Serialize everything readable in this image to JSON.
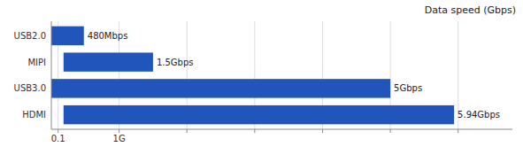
{
  "chart_data": {
    "type": "bar",
    "orientation": "horizontal",
    "title": "Data speed (Gbps)",
    "categories": [
      "USB2.0",
      "MIPI",
      "USB3.0",
      "HDMI"
    ],
    "starts": [
      0.0,
      0.18,
      0.0,
      0.18
    ],
    "values": [
      0.48,
      1.5,
      5.0,
      5.94
    ],
    "value_labels": [
      "480Mbps",
      "1.5Gbps",
      "5Gbps",
      "5.94Gbps"
    ],
    "data_labels": true,
    "color": "#2255bb",
    "xlim": [
      0.0,
      6.8
    ],
    "xticks": [
      0.1,
      {
        "value": 1,
        "label": "1G"
      },
      {
        "value": 2,
        "label": null
      },
      {
        "value": 3,
        "label": null
      },
      {
        "value": 4,
        "label": null
      },
      {
        "value": 5,
        "label": null
      },
      {
        "value": 6,
        "label": null
      }
    ],
    "grid": true
  }
}
